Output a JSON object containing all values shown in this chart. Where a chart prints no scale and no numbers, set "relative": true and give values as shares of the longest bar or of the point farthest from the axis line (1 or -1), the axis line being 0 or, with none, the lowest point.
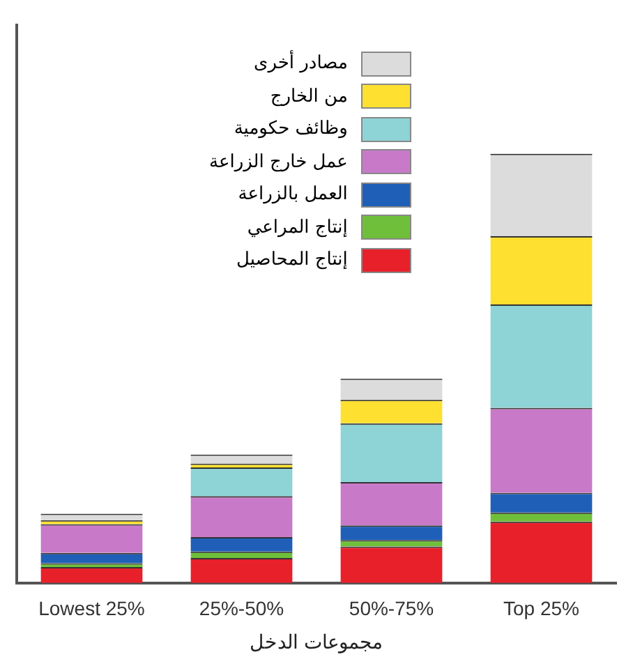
{
  "chart_data": {
    "type": "bar",
    "stacked": true,
    "relative": true,
    "xlabel": "مجموعات الدخل",
    "legend": "top",
    "categories": [
      "Lowest 25%",
      "25%-50%",
      "50%-75%",
      "Top 25%"
    ],
    "series": [
      {
        "name": "إنتاج المحاصيل",
        "color": "#e8202a",
        "values": [
          0.037,
          0.058,
          0.085,
          0.143
        ]
      },
      {
        "name": "إنتاج المراعي",
        "color": "#6fbf3a",
        "values": [
          0.009,
          0.015,
          0.015,
          0.021
        ]
      },
      {
        "name": "العمل بالزراعة",
        "color": "#1f5fb8",
        "values": [
          0.024,
          0.034,
          0.034,
          0.046
        ]
      },
      {
        "name": "عمل خارج الزراعة",
        "color": "#c87ac8",
        "values": [
          0.067,
          0.095,
          0.101,
          0.198
        ]
      },
      {
        "name": "وظائف حكومية",
        "color": "#8ed3d6",
        "values": [
          null,
          0.067,
          0.137,
          0.241
        ]
      },
      {
        "name": "من الخارج",
        "color": "#fde030",
        "values": [
          0.009,
          0.009,
          0.055,
          0.159
        ]
      },
      {
        "name": "مصادر أخرى",
        "color": "#dcdcdc",
        "values": [
          0.015,
          0.021,
          0.049,
          0.192
        ]
      }
    ]
  }
}
